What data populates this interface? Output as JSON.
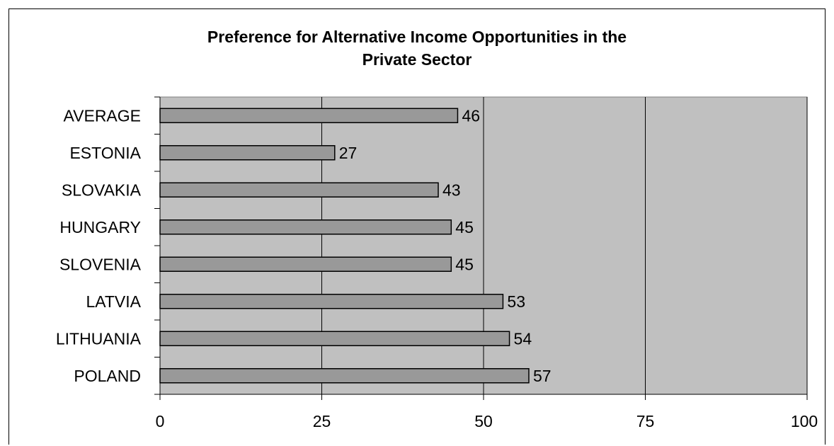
{
  "chart_data": {
    "type": "bar",
    "orientation": "horizontal",
    "title_lines": [
      "Preference for Alternative Income Opportunities in the",
      "Private Sector"
    ],
    "categories": [
      "AVERAGE",
      "ESTONIA",
      "SLOVAKIA",
      "HUNGARY",
      "SLOVENIA",
      "LATVIA",
      "LITHUANIA",
      "POLAND"
    ],
    "values": [
      46,
      27,
      43,
      45,
      45,
      53,
      54,
      57
    ],
    "value_labels": [
      "46",
      "27",
      "43",
      "45",
      "45",
      "53",
      "54",
      "57"
    ],
    "xlim": [
      0,
      100
    ],
    "x_ticks": [
      0,
      25,
      50,
      75,
      100
    ],
    "x_tick_labels": [
      "0",
      "25",
      "50",
      "75",
      "100"
    ],
    "grid": "vertical major gridlines",
    "legend": "none",
    "colors": {
      "plot_area": "#c0c0c0",
      "bar_fill": "#999999",
      "bar_stroke": "#000000",
      "gridline": "#000000"
    }
  }
}
